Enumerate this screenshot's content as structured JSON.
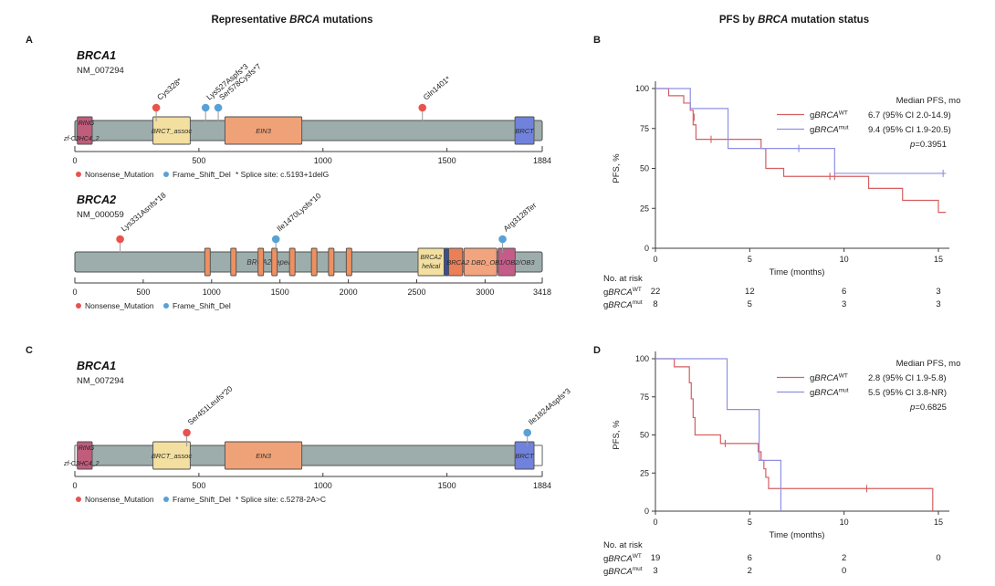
{
  "titles": {
    "left": {
      "pre": "Representative ",
      "italic": "BRCA",
      "post": " mutations"
    },
    "right": {
      "pre": "PFS by ",
      "italic": "BRCA",
      "post": " mutation status"
    }
  },
  "panel_labels": {
    "a": "A",
    "b": "B",
    "c": "C",
    "d": "D"
  },
  "colors": {
    "nonsense": "#e8534e",
    "frame_shift": "#58a1d5",
    "protein_bar": "#9dadac",
    "outline": "#4f4f4f",
    "km_wt": "#d55f5f",
    "km_mut": "#8f8fe6",
    "axis": "#3d3d3d"
  },
  "chart_data": [
    {
      "type": "lollipop",
      "panel": "A",
      "gene": "BRCA1",
      "transcript": "NM_007294",
      "protein_length": 1884,
      "xticks": [
        0,
        500,
        1000,
        1500,
        1884
      ],
      "domains": [
        {
          "label": "RING",
          "sublabel": "zf-C3HC4_2",
          "label_pos": "ring",
          "start": 10,
          "end": 70,
          "fill": "#c05c7c"
        },
        {
          "label": "BRCT_assoc",
          "start": 315,
          "end": 465,
          "fill": "#f3df9f"
        },
        {
          "label": "EIN3",
          "start": 605,
          "end": 915,
          "fill": "#efa277"
        },
        {
          "label": "BRCT",
          "start": 1774,
          "end": 1851,
          "fill": "#7082dc"
        }
      ],
      "mutations": [
        {
          "label": "Cys328*",
          "pos": 328,
          "type": "Nonsense_Mutation"
        },
        {
          "label": "Lys527Aspfs*3",
          "pos": 527,
          "type": "Frame_Shift_Del"
        },
        {
          "label": "Ser578Cysfs*7",
          "pos": 578,
          "type": "Frame_Shift_Del"
        },
        {
          "label": "Gln1401*",
          "pos": 1401,
          "type": "Nonsense_Mutation"
        }
      ],
      "legend": [
        {
          "label": "Nonsense_Mutation",
          "color_key": "nonsense"
        },
        {
          "label": "Frame_Shift_Del",
          "color_key": "frame_shift"
        }
      ],
      "note": "* Splice site: c.5193+1delG"
    },
    {
      "type": "lollipop",
      "panel": "A",
      "gene": "BRCA2",
      "transcript": "NM_000059",
      "protein_length": 3418,
      "xticks": [
        0,
        500,
        1000,
        1500,
        2000,
        2500,
        3000,
        3418
      ],
      "bar_label": {
        "text": "BRCA2 repeat",
        "pos": 1430
      },
      "domains": [
        {
          "start": 950,
          "end": 990,
          "fill": "#ef9060"
        },
        {
          "start": 1140,
          "end": 1180,
          "fill": "#ef9060"
        },
        {
          "start": 1340,
          "end": 1380,
          "fill": "#ef9060"
        },
        {
          "start": 1440,
          "end": 1480,
          "fill": "#ef9060"
        },
        {
          "start": 1570,
          "end": 1610,
          "fill": "#ef9060"
        },
        {
          "start": 1730,
          "end": 1770,
          "fill": "#ef9060"
        },
        {
          "start": 1855,
          "end": 1895,
          "fill": "#ef9060"
        },
        {
          "start": 1985,
          "end": 2025,
          "fill": "#ef9060"
        },
        {
          "label": "BRCA2\nhelical",
          "start": 2510,
          "end": 2700,
          "fill": "#f3df9f"
        },
        {
          "start": 2700,
          "end": 2734,
          "fill": "#3d4e8f"
        },
        {
          "start": 2734,
          "end": 2836,
          "fill": "#ea7f58"
        },
        {
          "start": 2846,
          "end": 3086,
          "fill": "#f2a47e"
        },
        {
          "start": 3096,
          "end": 3220,
          "fill": "#c45c88"
        }
      ],
      "overlay_label": {
        "text": "BRCA2 DBD_OB1/OB2/OB3",
        "pos": 3040
      },
      "mutations": [
        {
          "label": "Lys331Asnfs*18",
          "pos": 331,
          "type": "Nonsense_Mutation"
        },
        {
          "label": "Ile1470Lysfs*10",
          "pos": 1470,
          "type": "Frame_Shift_Del"
        },
        {
          "label": "Arg3128Ter",
          "pos": 3128,
          "type": "Frame_Shift_Del"
        }
      ],
      "legend": [
        {
          "label": "Nonsense_Mutation",
          "color_key": "nonsense"
        },
        {
          "label": "Frame_Shift_Del",
          "color_key": "frame_shift"
        }
      ]
    },
    {
      "type": "lollipop",
      "panel": "C",
      "gene": "BRCA1",
      "transcript": "NM_007294",
      "protein_length": 1884,
      "xticks": [
        0,
        500,
        1000,
        1500,
        1884
      ],
      "white_segments": [
        [
          0,
          10
        ],
        [
          1851,
          1884
        ]
      ],
      "domains": [
        {
          "label": "RING",
          "sublabel": "zf-C3HC4_2",
          "label_pos": "ring",
          "start": 10,
          "end": 70,
          "fill": "#c05c7c"
        },
        {
          "label": "BRCT_assoc",
          "start": 315,
          "end": 465,
          "fill": "#f3df9f"
        },
        {
          "label": "EIN3",
          "start": 605,
          "end": 915,
          "fill": "#efa277"
        },
        {
          "label": "BRCT",
          "start": 1774,
          "end": 1851,
          "fill": "#7082dc"
        }
      ],
      "mutations": [
        {
          "label": "Ser451Leufs*20",
          "pos": 451,
          "type": "Nonsense_Mutation"
        },
        {
          "label": "Ile1824Aspfs*3",
          "pos": 1824,
          "type": "Frame_Shift_Del"
        }
      ],
      "legend": [
        {
          "label": "Nonsense_Mutation",
          "color_key": "nonsense"
        },
        {
          "label": "Frame_Shift_Del",
          "color_key": "frame_shift"
        }
      ],
      "note": "* Splice site: c.5278-2A>C"
    },
    {
      "type": "km",
      "panel": "B",
      "xlabel": "Time (months)",
      "ylabel": "PFS, %",
      "xticks": [
        0,
        5,
        10,
        15
      ],
      "yticks": [
        0,
        25,
        50,
        75,
        100
      ],
      "xlim": [
        0,
        15.5
      ],
      "ylim": [
        0,
        100
      ],
      "legend_header": "Median PFS, mo",
      "pvalue": "p=0.3951",
      "series": [
        {
          "name": {
            "pre": "g",
            "gene": "BRCA",
            "sup": "WT"
          },
          "color_key": "km_wt",
          "median_text": "6.7 (95% CI 2.0-14.9)",
          "steps": [
            [
              0,
              100
            ],
            [
              0.7,
              95.5
            ],
            [
              1.5,
              90.9
            ],
            [
              1.85,
              86.4
            ],
            [
              2.0,
              77.3
            ],
            [
              2.15,
              68.2
            ],
            [
              5.6,
              62.5
            ],
            [
              5.85,
              50
            ],
            [
              6.8,
              45
            ],
            [
              11.3,
              37.5
            ],
            [
              13.1,
              30
            ],
            [
              15.0,
              22.5
            ]
          ],
          "end": 15.4,
          "censors": [
            [
              2.05,
              82
            ],
            [
              2.95,
              68.2
            ],
            [
              9.25,
              45
            ],
            [
              9.5,
              45
            ]
          ]
        },
        {
          "name": {
            "pre": "g",
            "gene": "BRCA",
            "sup": "mut"
          },
          "color_key": "km_mut",
          "median_text": "9.4 (95% CI 1.9-20.5)",
          "steps": [
            [
              0,
              100
            ],
            [
              1.85,
              87.5
            ],
            [
              3.85,
              62.5
            ],
            [
              9.5,
              46.9
            ]
          ],
          "end": 15.4,
          "censors": [
            [
              7.6,
              62.5
            ],
            [
              15.25,
              46.9
            ]
          ]
        }
      ],
      "risk_table": {
        "label": "No. at risk",
        "times": [
          0,
          5,
          10,
          15
        ],
        "rows": [
          {
            "name": {
              "pre": "g",
              "gene": "BRCA",
              "sup": "WT"
            },
            "counts": [
              "22",
              "12",
              "6",
              "3"
            ]
          },
          {
            "name": {
              "pre": "g",
              "gene": "BRCA",
              "sup": "mut"
            },
            "counts": [
              "8",
              "5",
              "3",
              "3"
            ]
          }
        ]
      }
    },
    {
      "type": "km",
      "panel": "D",
      "xlabel": "Time (months)",
      "ylabel": "PFS, %",
      "xticks": [
        0,
        5,
        10,
        15
      ],
      "yticks": [
        0,
        25,
        50,
        75,
        100
      ],
      "xlim": [
        0,
        15.5
      ],
      "ylim": [
        0,
        100
      ],
      "legend_header": "Median PFS, mo",
      "pvalue": "p=0.6825",
      "series": [
        {
          "name": {
            "pre": "g",
            "gene": "BRCA",
            "sup": "WT"
          },
          "color_key": "km_wt",
          "median_text": "2.8 (95% CI 1.9-5.8)",
          "steps": [
            [
              0,
              100
            ],
            [
              1.0,
              94.7
            ],
            [
              1.8,
              84.2
            ],
            [
              1.9,
              73.7
            ],
            [
              2.0,
              61.4
            ],
            [
              2.1,
              50
            ],
            [
              3.45,
              44.4
            ],
            [
              5.45,
              38.9
            ],
            [
              5.6,
              33.3
            ],
            [
              5.75,
              27.8
            ],
            [
              5.85,
              22.2
            ],
            [
              6.0,
              14.8
            ],
            [
              14.7,
              0
            ]
          ],
          "end": 14.7,
          "censors": [
            [
              3.7,
              44.4
            ],
            [
              11.2,
              14.8
            ]
          ]
        },
        {
          "name": {
            "pre": "g",
            "gene": "BRCA",
            "sup": "mut"
          },
          "color_key": "km_mut",
          "median_text": "5.5 (95% CI 3.8-NR)",
          "steps": [
            [
              0,
              100
            ],
            [
              3.8,
              66.7
            ],
            [
              5.5,
              33.3
            ],
            [
              6.65,
              0
            ]
          ],
          "end": 6.65,
          "censors": []
        }
      ],
      "risk_table": {
        "label": "No. at risk",
        "times": [
          0,
          5,
          10,
          15
        ],
        "rows": [
          {
            "name": {
              "pre": "g",
              "gene": "BRCA",
              "sup": "WT"
            },
            "counts": [
              "19",
              "6",
              "2",
              "0"
            ]
          },
          {
            "name": {
              "pre": "g",
              "gene": "BRCA",
              "sup": "mut"
            },
            "counts": [
              "3",
              "2",
              "0",
              ""
            ]
          }
        ]
      }
    }
  ]
}
